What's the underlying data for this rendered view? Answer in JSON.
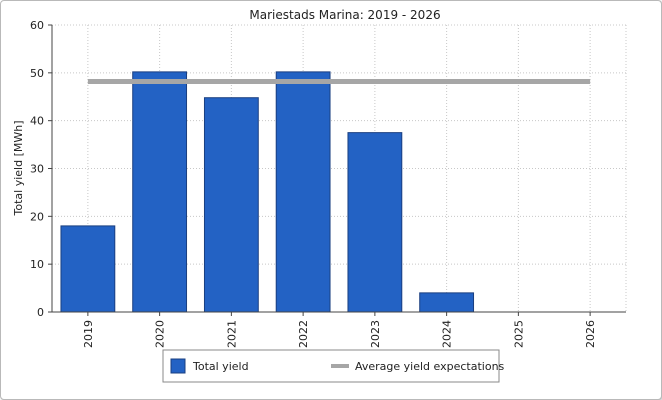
{
  "chart_data": {
    "type": "bar",
    "title": "Mariestads Marina: 2019 - 2026",
    "xlabel": "",
    "ylabel": "Total yield [MWh]",
    "ylim": [
      0,
      60
    ],
    "yticks": [
      0,
      10,
      20,
      30,
      40,
      50,
      60
    ],
    "categories": [
      "2019",
      "2020",
      "2021",
      "2022",
      "2023",
      "2024",
      "2025",
      "2026"
    ],
    "series": [
      {
        "name": "Total yield",
        "type": "bar",
        "values": [
          18,
          50.2,
          44.8,
          50.2,
          37.5,
          4,
          null,
          null
        ],
        "color": "#2362c4"
      },
      {
        "name": "Average yield expectations",
        "type": "line",
        "values": [
          48.2,
          48.2,
          48.2,
          48.2,
          48.2,
          48.2,
          48.2,
          48.2
        ],
        "color": "#a6a6a6"
      }
    ],
    "grid": true,
    "legend": "bottom"
  }
}
